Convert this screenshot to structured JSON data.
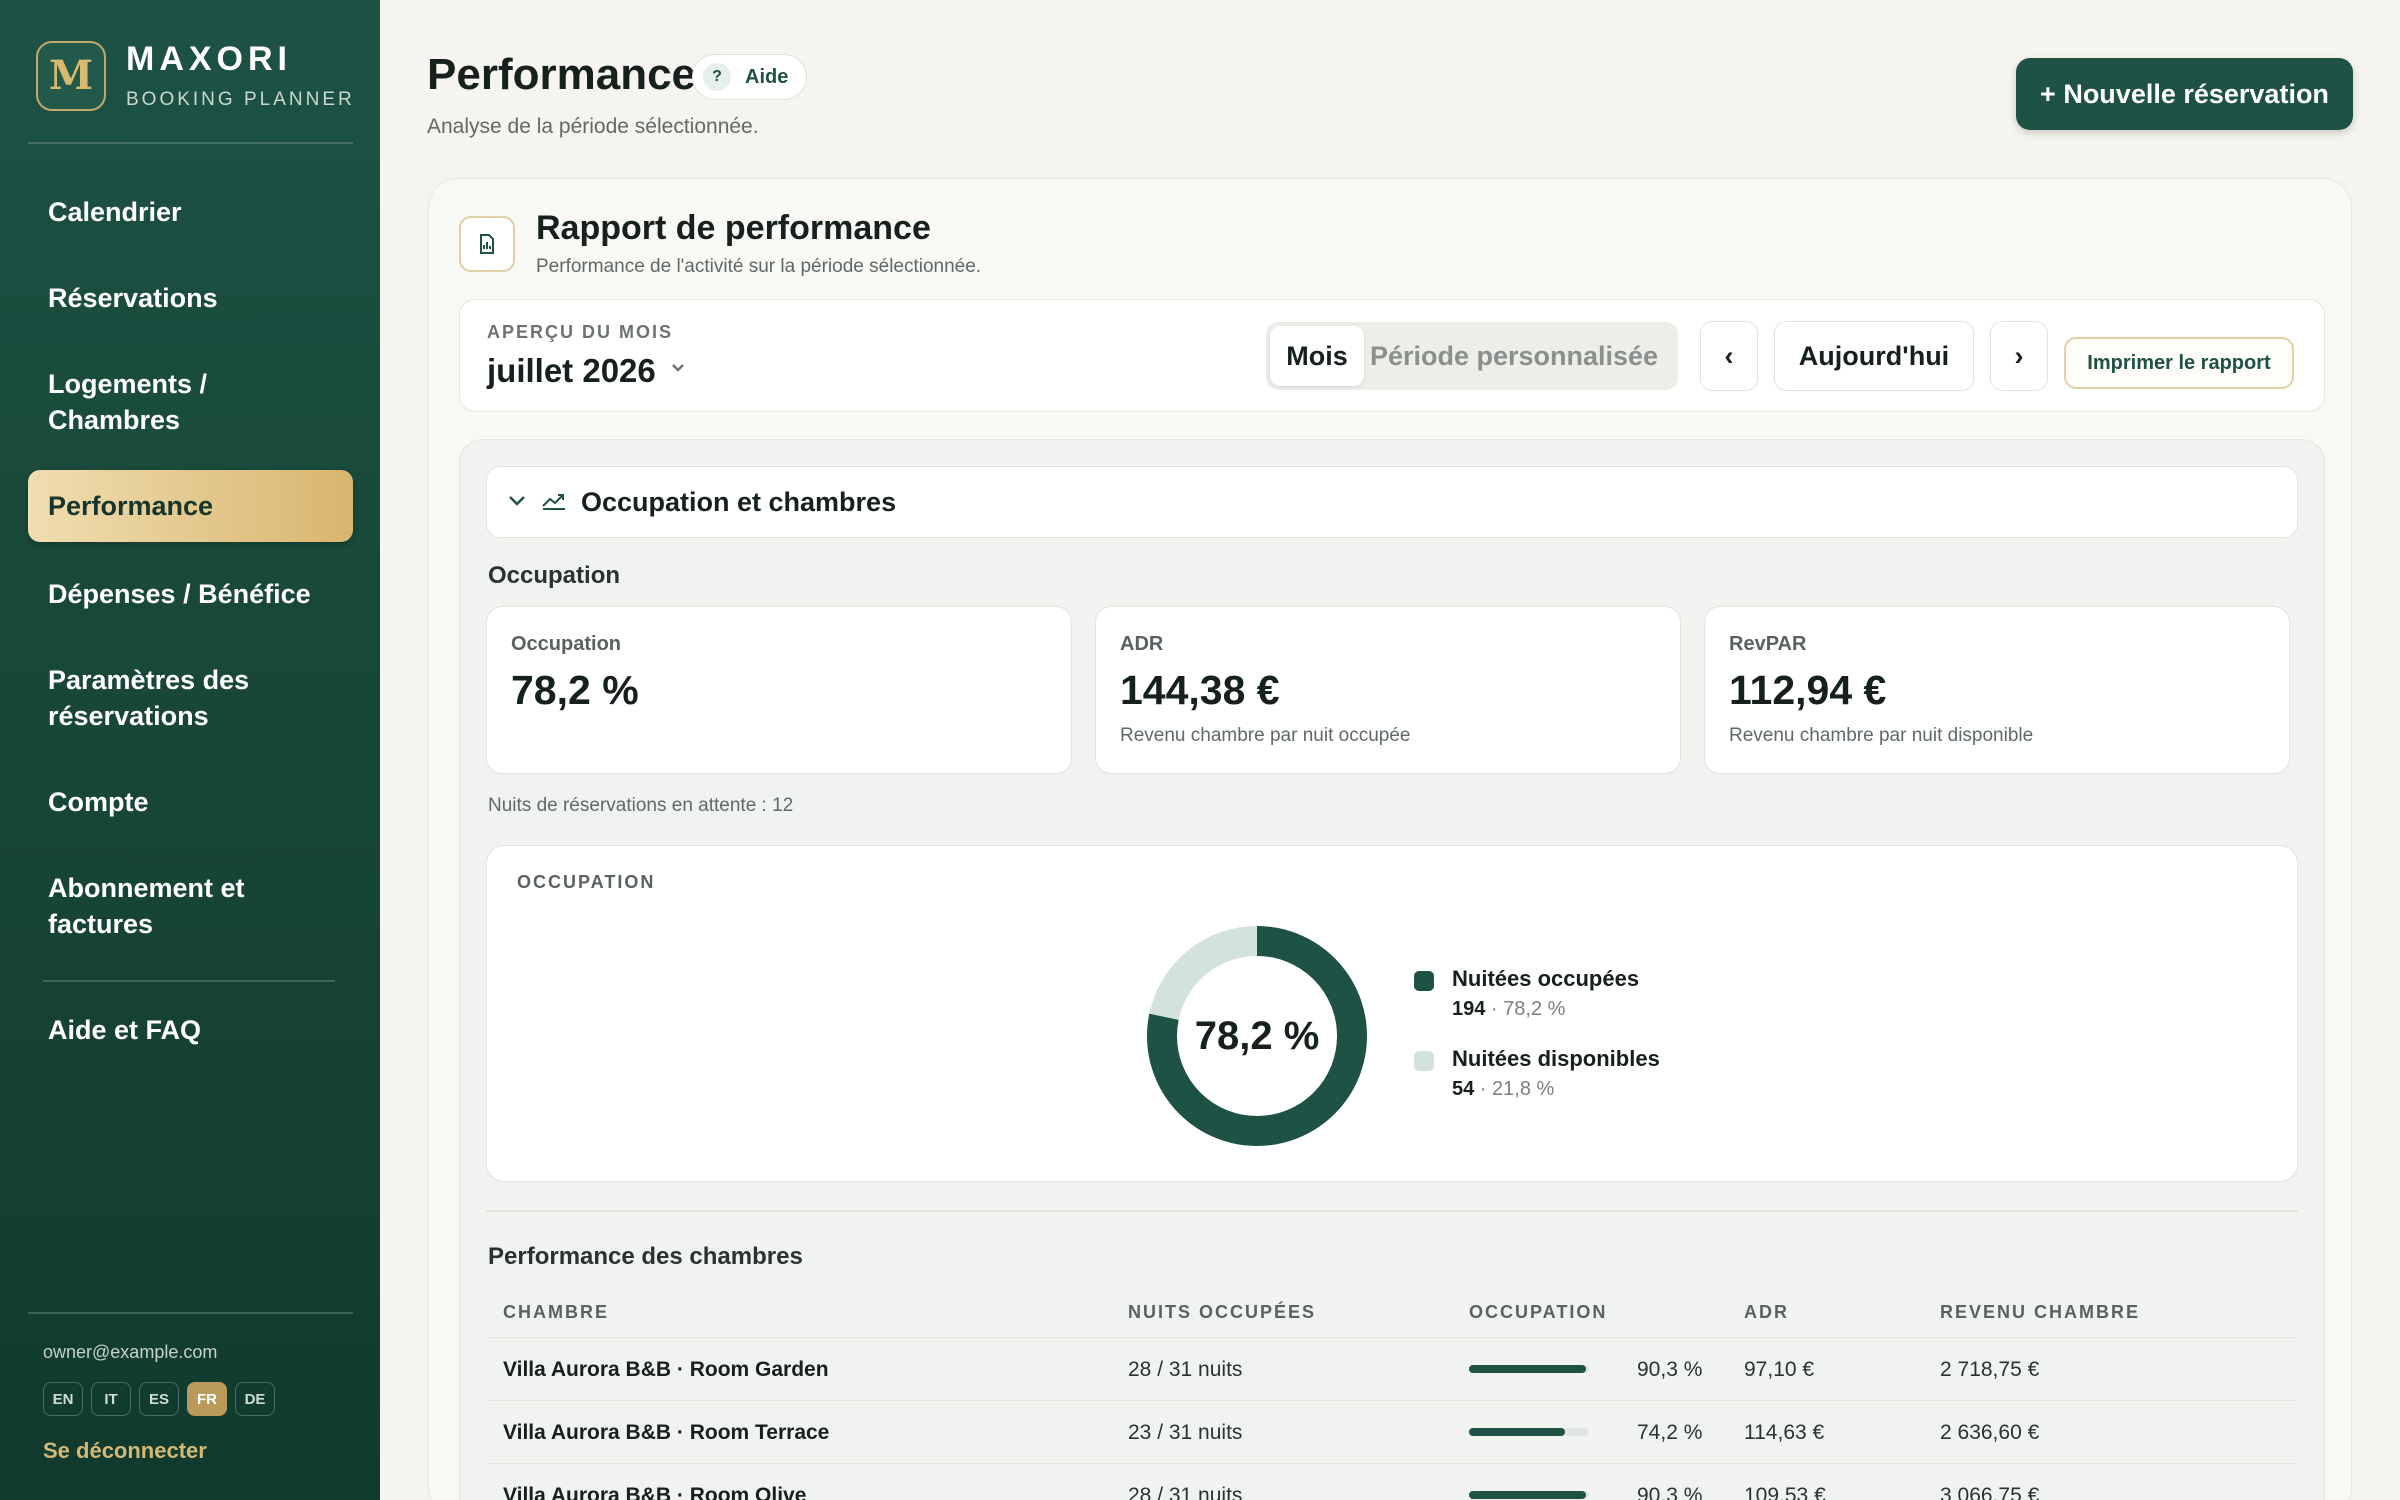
{
  "brand": {
    "logo_letter": "M",
    "name": "MAXORI",
    "subtitle": "BOOKING PLANNER"
  },
  "nav": [
    {
      "label": "Calendrier"
    },
    {
      "label": "Réservations"
    },
    {
      "label": "Logements / Chambres"
    },
    {
      "label": "Performance",
      "active": true
    },
    {
      "label": "Dépenses / Bénéfice"
    },
    {
      "label": "Paramètres des réservations"
    },
    {
      "label": "Compte"
    },
    {
      "label": "Abonnement et factures"
    },
    {
      "label": "Aide et FAQ"
    }
  ],
  "account": {
    "email": "owner@example.com",
    "logout": "Se déconnecter"
  },
  "languages": [
    {
      "code": "EN"
    },
    {
      "code": "IT"
    },
    {
      "code": "ES"
    },
    {
      "code": "FR",
      "active": true
    },
    {
      "code": "DE"
    }
  ],
  "header": {
    "title": "Performance",
    "help_label": "Aide",
    "help_icon": "?",
    "subtitle": "Analyse de la période sélectionnée.",
    "new_booking_label": "+ Nouvelle réservation"
  },
  "report": {
    "title": "Rapport de performance",
    "subtitle": "Performance de l'activité sur la période sélectionnée.",
    "month_label": "APERÇU DU MOIS",
    "month_value": "juillet 2026",
    "seg_month": "Mois",
    "seg_custom": "Période personnalisée",
    "prev_label": "‹",
    "today_label": "Aujourd'hui",
    "next_label": "›",
    "print_label": "Imprimer le rapport"
  },
  "occupancy_section": {
    "title": "Occupation et chambres",
    "subtitle": "Occupation",
    "kpis": [
      {
        "label": "Occupation",
        "value": "78,2 %",
        "description": ""
      },
      {
        "label": "ADR",
        "value": "144,38 €",
        "description": "Revenu chambre par nuit occupée"
      },
      {
        "label": "RevPAR",
        "value": "112,94 €",
        "description": "Revenu chambre par nuit disponible"
      }
    ],
    "pending_nights": "Nuits de réservations en attente : 12",
    "chart_title": "OCCUPATION",
    "chart_center": "78,2 %"
  },
  "chart_data": {
    "type": "pie",
    "title": "OCCUPATION",
    "categories": [
      "Nuitées occupées",
      "Nuitées disponibles"
    ],
    "values": [
      194,
      54
    ],
    "percent_labels": [
      "78,2 %",
      "21,8 %"
    ],
    "colors": [
      "#1d5244",
      "#d3e2dc"
    ],
    "center_label": "78,2 %",
    "legend": "right"
  },
  "room_performance": {
    "title": "Performance des chambres",
    "columns": [
      "CHAMBRE",
      "NUITS OCCUPÉES",
      "OCCUPATION",
      "ADR",
      "REVENU CHAMBRE"
    ],
    "rows": [
      {
        "room": "Villa Aurora B&B · Room Garden",
        "nights": "28 / 31 nuits",
        "occupancy": "90,3 %",
        "occupancy_fraction": 0.903,
        "adr": "97,10 €",
        "revenue": "2 718,75 €"
      },
      {
        "room": "Villa Aurora B&B · Room Terrace",
        "nights": "23 / 31 nuits",
        "occupancy": "74,2 %",
        "occupancy_fraction": 0.742,
        "adr": "114,63 €",
        "revenue": "2 636,60 €"
      },
      {
        "room": "Villa Aurora B&B · Room Olive",
        "nights": "28 / 31 nuits",
        "occupancy": "90,3 %",
        "occupancy_fraction": 0.903,
        "adr": "109,53 €",
        "revenue": "3 066,75 €"
      }
    ]
  },
  "colors": {
    "sidebar": "#1d5244",
    "accent": "#1d5244",
    "gold": "#d8b66f",
    "available": "#d3e2dc"
  },
  "icons": {
    "report": "report-chart-icon",
    "collapse": "chevron-down-icon",
    "trend": "trend-chart-icon",
    "month_dropdown": "chevron-down-icon"
  }
}
